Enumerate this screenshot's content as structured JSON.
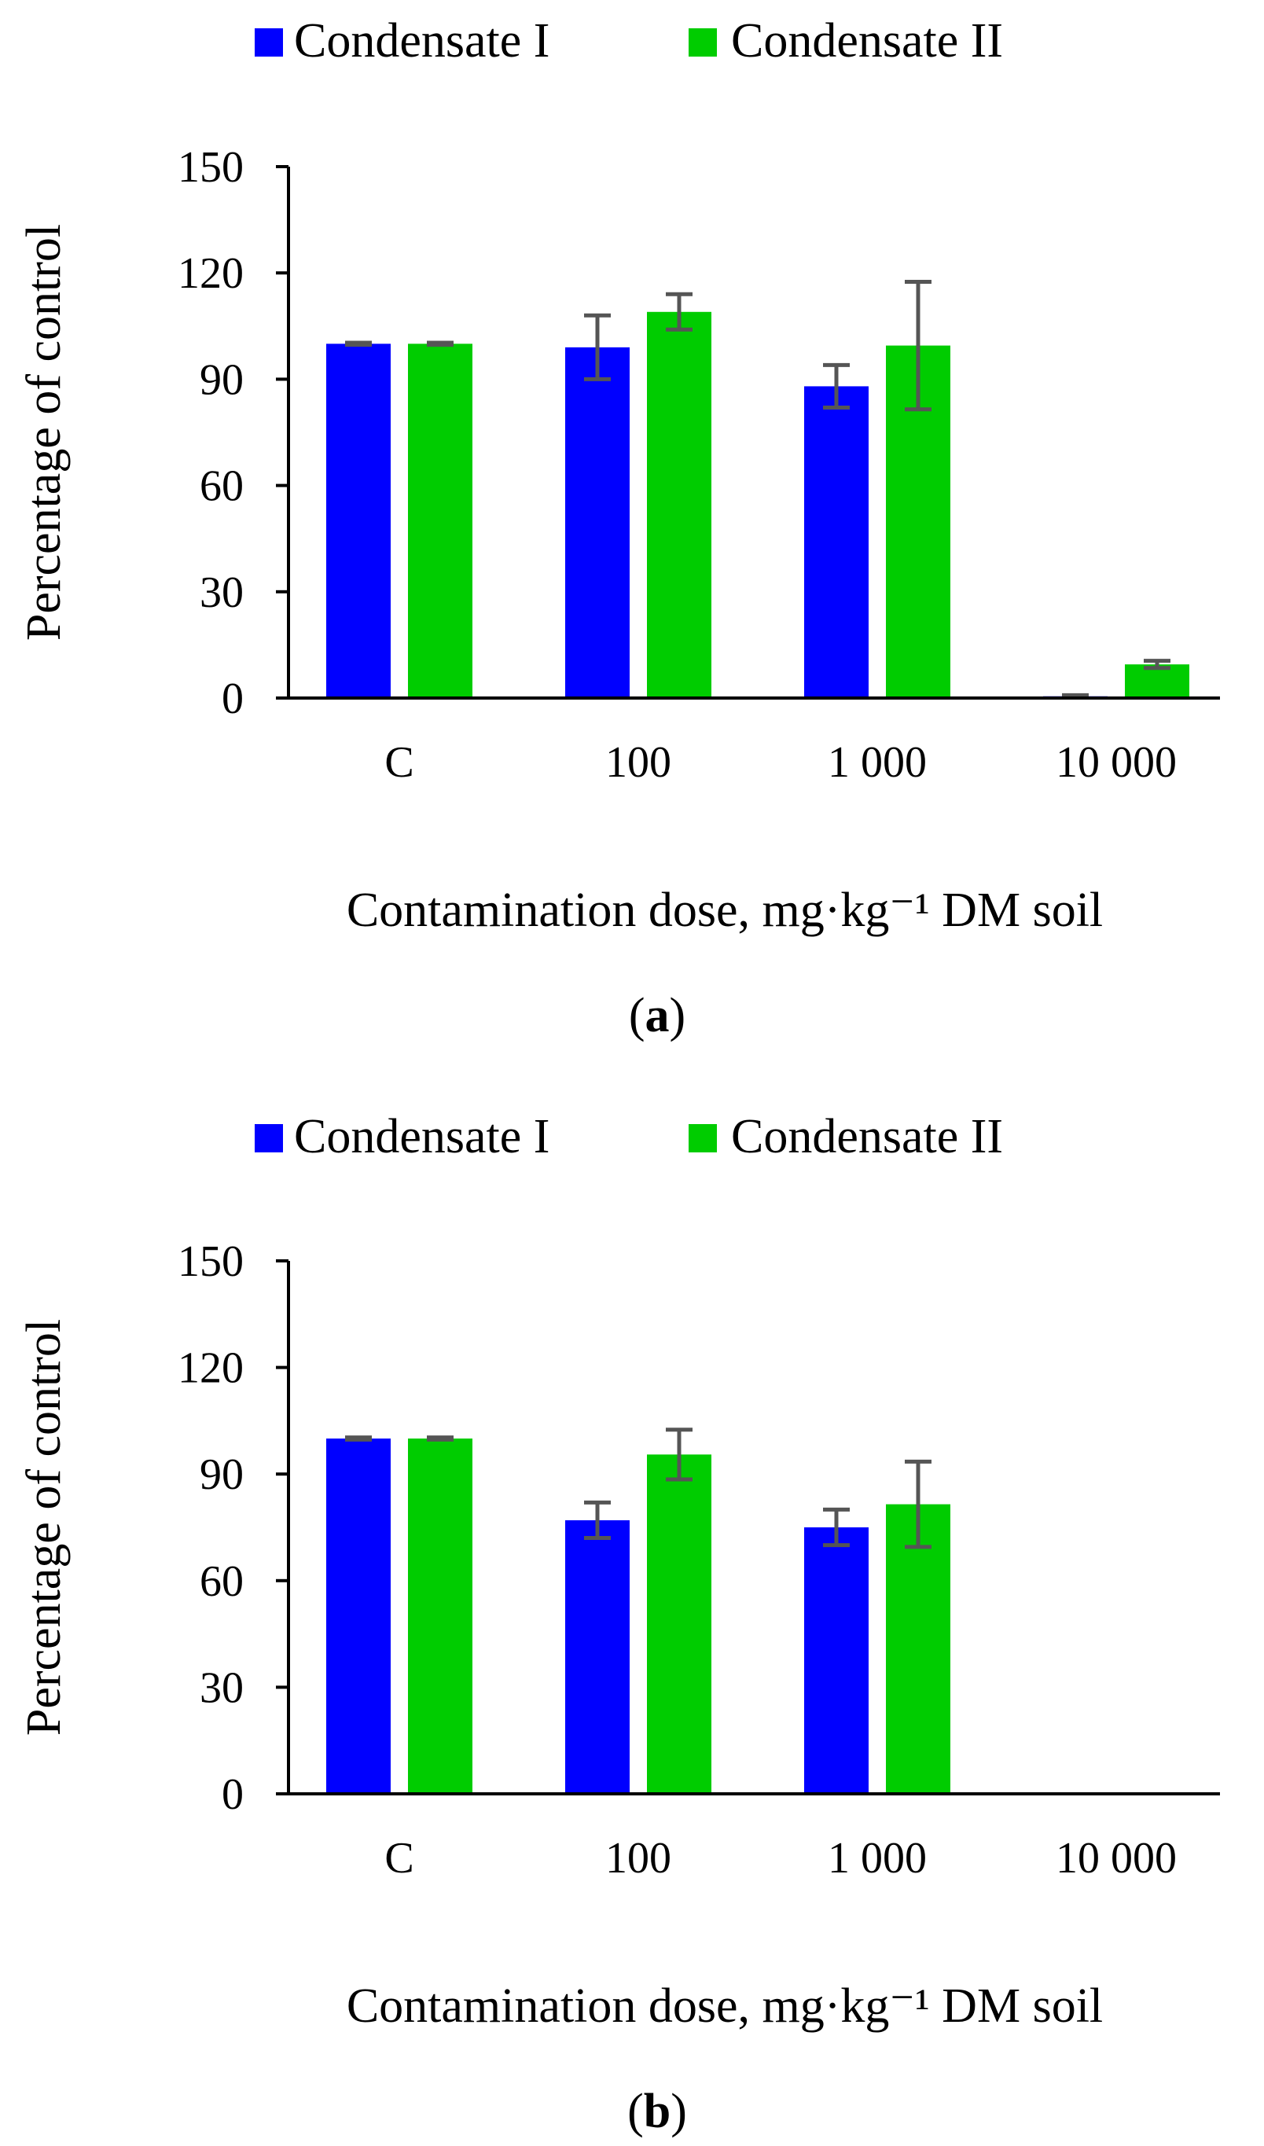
{
  "chart_data": [
    {
      "type": "bar",
      "panel_label": "a",
      "categories": [
        "C",
        "100",
        "1 000",
        "10 000"
      ],
      "series": [
        {
          "name": "Condensate I",
          "color": "#0000ff",
          "values": [
            100,
            99,
            88,
            0.5
          ],
          "errors": [
            0.3,
            9,
            6,
            0.3
          ]
        },
        {
          "name": "Condensate II",
          "color": "#00cc00",
          "values": [
            100,
            109,
            99.5,
            9.5
          ],
          "errors": [
            0.3,
            5,
            18,
            1
          ]
        }
      ],
      "xlabel": "Contamination dose, mg·kg⁻¹ DM soil",
      "ylabel": "Percentage of control",
      "ylim": [
        0,
        150
      ],
      "yticks": [
        "0",
        "30",
        "60",
        "90",
        "120",
        "150"
      ],
      "legend_position": "top",
      "error_bar_color": "#555555"
    },
    {
      "type": "bar",
      "panel_label": "b",
      "categories": [
        "C",
        "100",
        "1 000",
        "10 000"
      ],
      "series": [
        {
          "name": "Condensate I",
          "color": "#0000ff",
          "values": [
            100,
            77,
            75,
            0
          ],
          "errors": [
            0.3,
            5,
            5,
            0
          ]
        },
        {
          "name": "Condensate II",
          "color": "#00cc00",
          "values": [
            100,
            95.5,
            81.5,
            0
          ],
          "errors": [
            0.3,
            7,
            12,
            0
          ]
        }
      ],
      "xlabel": "Contamination dose, mg·kg⁻¹ DM soil",
      "ylabel": "Percentage of control",
      "ylim": [
        0,
        150
      ],
      "yticks": [
        "0",
        "30",
        "60",
        "90",
        "120",
        "150"
      ],
      "legend_position": "top",
      "error_bar_color": "#555555"
    }
  ]
}
